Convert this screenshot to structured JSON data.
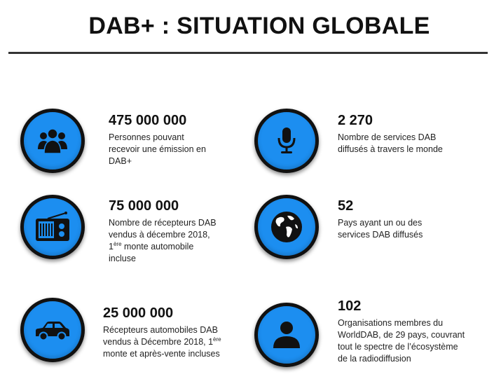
{
  "title": "DAB+ : SITUATION GLOBALE",
  "stats": [
    {
      "icon": "people-icon",
      "value": "475 000 000",
      "lines": [
        "Personnes pouvant",
        "recevoir une émission en",
        "DAB+"
      ]
    },
    {
      "icon": "microphone-icon",
      "value": "2 270",
      "lines": [
        "Nombre de services DAB",
        "diffusés à travers le monde"
      ]
    },
    {
      "icon": "radio-icon",
      "value": "75 000 000",
      "lines": [
        "Nombre de récepteurs DAB",
        "vendus à décembre 2018,"
      ],
      "line3_pre": "1",
      "line3_sup": "ère",
      "line3_post": " monte automobile",
      "line4": "incluse"
    },
    {
      "icon": "globe-icon",
      "value": "52",
      "lines": [
        "Pays ayant un ou des",
        "services DAB diffusés"
      ]
    },
    {
      "icon": "car-icon",
      "value": "25 000 000",
      "line1": "Récepteurs automobiles DAB",
      "line2_pre": "vendus à Décembre 2018, 1",
      "line2_sup": "ère",
      "line3": "monte et après-vente incluses"
    },
    {
      "icon": "person-icon",
      "value": "102",
      "lines": [
        "Organisations membres du",
        "WorldDAB, de 29 pays, couvrant",
        "tout le spectre de l’écosystème",
        "de la radiodiffusion"
      ]
    }
  ]
}
